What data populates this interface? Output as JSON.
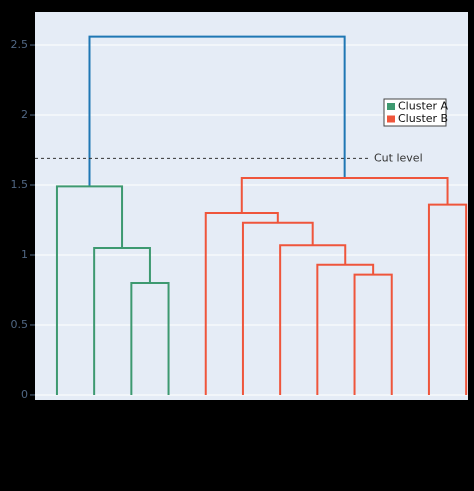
{
  "chart_data": {
    "type": "dendrogram",
    "xlim": [
      -0.9,
      115.5
    ],
    "ylim": [
      -0.036,
      2.736
    ],
    "yticks": [
      0,
      0.5,
      1,
      1.5,
      2,
      2.5
    ],
    "grid": true,
    "legend": "upper right",
    "cut": {
      "value": 1.69,
      "label": "Cut level"
    },
    "series": [
      {
        "color": "#1f77b4",
        "links": [
          {
            "x": [
              13.75,
              13.75,
              82.34,
              82.34
            ],
            "y": [
              1.49,
              2.56,
              2.56,
              1.55
            ]
          }
        ]
      },
      {
        "name": "Cluster A",
        "color": "#3d9970",
        "links": [
          {
            "x": [
              25,
              25,
              35,
              35
            ],
            "y": [
              0,
              0.8,
              0.8,
              0
            ]
          },
          {
            "x": [
              15,
              15,
              30,
              30
            ],
            "y": [
              0,
              1.05,
              1.05,
              0.8
            ]
          },
          {
            "x": [
              5,
              5,
              22.5,
              22.5
            ],
            "y": [
              0,
              1.49,
              1.49,
              1.05
            ]
          }
        ]
      },
      {
        "name": "Cluster B",
        "color": "#ef553b",
        "links": [
          {
            "x": [
              85,
              85,
              95,
              95
            ],
            "y": [
              0,
              0.86,
              0.86,
              0
            ]
          },
          {
            "x": [
              75,
              75,
              90,
              90
            ],
            "y": [
              0,
              0.93,
              0.93,
              0.86
            ]
          },
          {
            "x": [
              65,
              65,
              82.5,
              82.5
            ],
            "y": [
              0,
              1.07,
              1.07,
              0.93
            ]
          },
          {
            "x": [
              55,
              55,
              73.75,
              73.75
            ],
            "y": [
              0,
              1.23,
              1.23,
              1.07
            ]
          },
          {
            "x": [
              45,
              45,
              64.375,
              64.375
            ],
            "y": [
              0,
              1.3,
              1.3,
              1.23
            ]
          },
          {
            "x": [
              105,
              105,
              115,
              115
            ],
            "y": [
              0,
              1.36,
              1.36,
              0
            ]
          },
          {
            "x": [
              54.6875,
              54.6875,
              110,
              110
            ],
            "y": [
              1.3,
              1.55,
              1.55,
              1.36
            ]
          }
        ]
      }
    ]
  }
}
